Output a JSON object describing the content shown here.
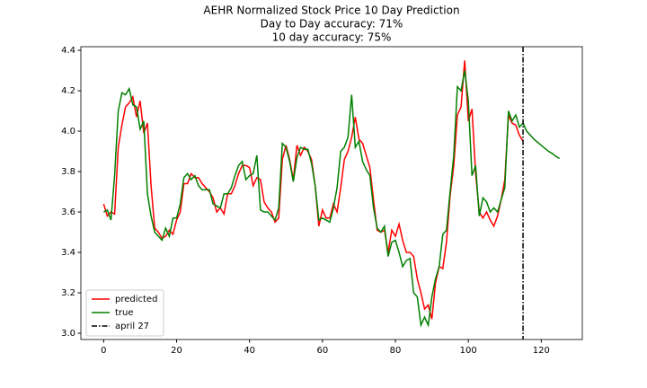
{
  "chart_data": {
    "type": "line",
    "title": "AEHR Normalized Stock Price 10 Day Prediction",
    "subtitles": [
      "Day to Day accuracy: 71%",
      "10 day accuracy: 75%"
    ],
    "x": [
      0,
      1,
      2,
      3,
      4,
      5,
      6,
      7,
      8,
      9,
      10,
      11,
      12,
      13,
      14,
      15,
      16,
      17,
      18,
      19,
      20,
      21,
      22,
      23,
      24,
      25,
      26,
      27,
      28,
      29,
      30,
      31,
      32,
      33,
      34,
      35,
      36,
      37,
      38,
      39,
      40,
      41,
      42,
      43,
      44,
      45,
      46,
      47,
      48,
      49,
      50,
      51,
      52,
      53,
      54,
      55,
      56,
      57,
      58,
      59,
      60,
      61,
      62,
      63,
      64,
      65,
      66,
      67,
      68,
      69,
      70,
      71,
      72,
      73,
      74,
      75,
      76,
      77,
      78,
      79,
      80,
      81,
      82,
      83,
      84,
      85,
      86,
      87,
      88,
      89,
      90,
      91,
      92,
      93,
      94,
      95,
      96,
      97,
      98,
      99,
      100,
      101,
      102,
      103,
      104,
      105,
      106,
      107,
      108,
      109,
      110,
      111,
      112,
      113,
      114,
      115,
      116,
      117,
      118,
      119,
      120,
      121,
      122,
      123,
      124,
      125
    ],
    "series": [
      {
        "name": "predicted",
        "color": "#ff0000",
        "values": [
          3.64,
          3.58,
          3.6,
          3.59,
          3.92,
          4.03,
          4.12,
          4.14,
          4.17,
          4.07,
          4.15,
          3.99,
          4.04,
          3.73,
          3.52,
          3.5,
          3.47,
          3.48,
          3.51,
          3.49,
          3.56,
          3.6,
          3.74,
          3.74,
          3.79,
          3.77,
          3.77,
          3.74,
          3.72,
          3.7,
          3.67,
          3.6,
          3.62,
          3.59,
          3.69,
          3.69,
          3.73,
          3.79,
          3.83,
          3.83,
          3.82,
          3.73,
          3.77,
          3.76,
          3.65,
          3.62,
          3.6,
          3.55,
          3.57,
          3.86,
          3.93,
          3.86,
          3.76,
          3.93,
          3.88,
          3.92,
          3.9,
          3.86,
          3.73,
          3.53,
          3.61,
          3.57,
          3.57,
          3.64,
          3.6,
          3.72,
          3.86,
          3.9,
          3.97,
          4.07,
          3.96,
          3.94,
          3.88,
          3.82,
          3.66,
          3.51,
          3.5,
          3.51,
          3.4,
          3.51,
          3.48,
          3.54,
          3.46,
          3.4,
          3.4,
          3.38,
          3.27,
          3.2,
          3.12,
          3.14,
          3.07,
          3.25,
          3.33,
          3.32,
          3.45,
          3.68,
          3.83,
          4.08,
          4.12,
          4.35,
          4.05,
          4.11,
          3.79,
          3.6,
          3.57,
          3.6,
          3.56,
          3.53,
          3.58,
          3.66,
          3.76,
          4.08,
          4.04,
          4.03,
          3.98,
          3.95,
          null,
          null,
          null,
          null,
          null,
          null,
          null,
          null,
          null,
          null
        ]
      },
      {
        "name": "true",
        "color": "#008000",
        "values": [
          3.6,
          3.61,
          3.56,
          3.78,
          4.1,
          4.19,
          4.18,
          4.21,
          4.13,
          4.12,
          4.01,
          4.05,
          3.69,
          3.58,
          3.5,
          3.48,
          3.46,
          3.52,
          3.48,
          3.57,
          3.57,
          3.64,
          3.77,
          3.79,
          3.76,
          3.78,
          3.73,
          3.71,
          3.71,
          3.71,
          3.64,
          3.63,
          3.62,
          3.69,
          3.69,
          3.72,
          3.78,
          3.83,
          3.85,
          3.76,
          3.78,
          3.79,
          3.88,
          3.61,
          3.6,
          3.6,
          3.58,
          3.56,
          3.62,
          3.94,
          3.92,
          3.85,
          3.75,
          3.87,
          3.92,
          3.91,
          3.91,
          3.84,
          3.73,
          3.56,
          3.57,
          3.56,
          3.55,
          3.62,
          3.72,
          3.9,
          3.92,
          3.97,
          4.18,
          3.92,
          3.95,
          3.85,
          3.81,
          3.78,
          3.62,
          3.52,
          3.5,
          3.53,
          3.38,
          3.45,
          3.46,
          3.4,
          3.33,
          3.36,
          3.37,
          3.2,
          3.18,
          3.04,
          3.08,
          3.04,
          3.18,
          3.27,
          3.33,
          3.49,
          3.51,
          3.7,
          3.88,
          4.22,
          4.2,
          4.3,
          4.15,
          3.78,
          3.83,
          3.58,
          3.67,
          3.65,
          3.6,
          3.62,
          3.6,
          3.66,
          3.72,
          4.1,
          4.05,
          4.08,
          4.02,
          4.04,
          4.0,
          3.98,
          3.96,
          3.945,
          3.93,
          3.915,
          3.9,
          3.89,
          3.875,
          3.865
        ]
      }
    ],
    "vline": {
      "name": "april 27",
      "x": 115,
      "color": "#000000"
    },
    "xlim": [
      -6.25,
      131.25
    ],
    "xticks": [
      0,
      20,
      40,
      60,
      80,
      100,
      120
    ],
    "ylim": [
      2.969,
      4.418
    ],
    "yticks": [
      {
        "value": 3,
        "label": "3.0"
      },
      3.2,
      3.4,
      3.6,
      3.8,
      {
        "value": 4,
        "label": "4.0"
      },
      4.2,
      4.4
    ],
    "legend": "lower left",
    "grid": false
  }
}
